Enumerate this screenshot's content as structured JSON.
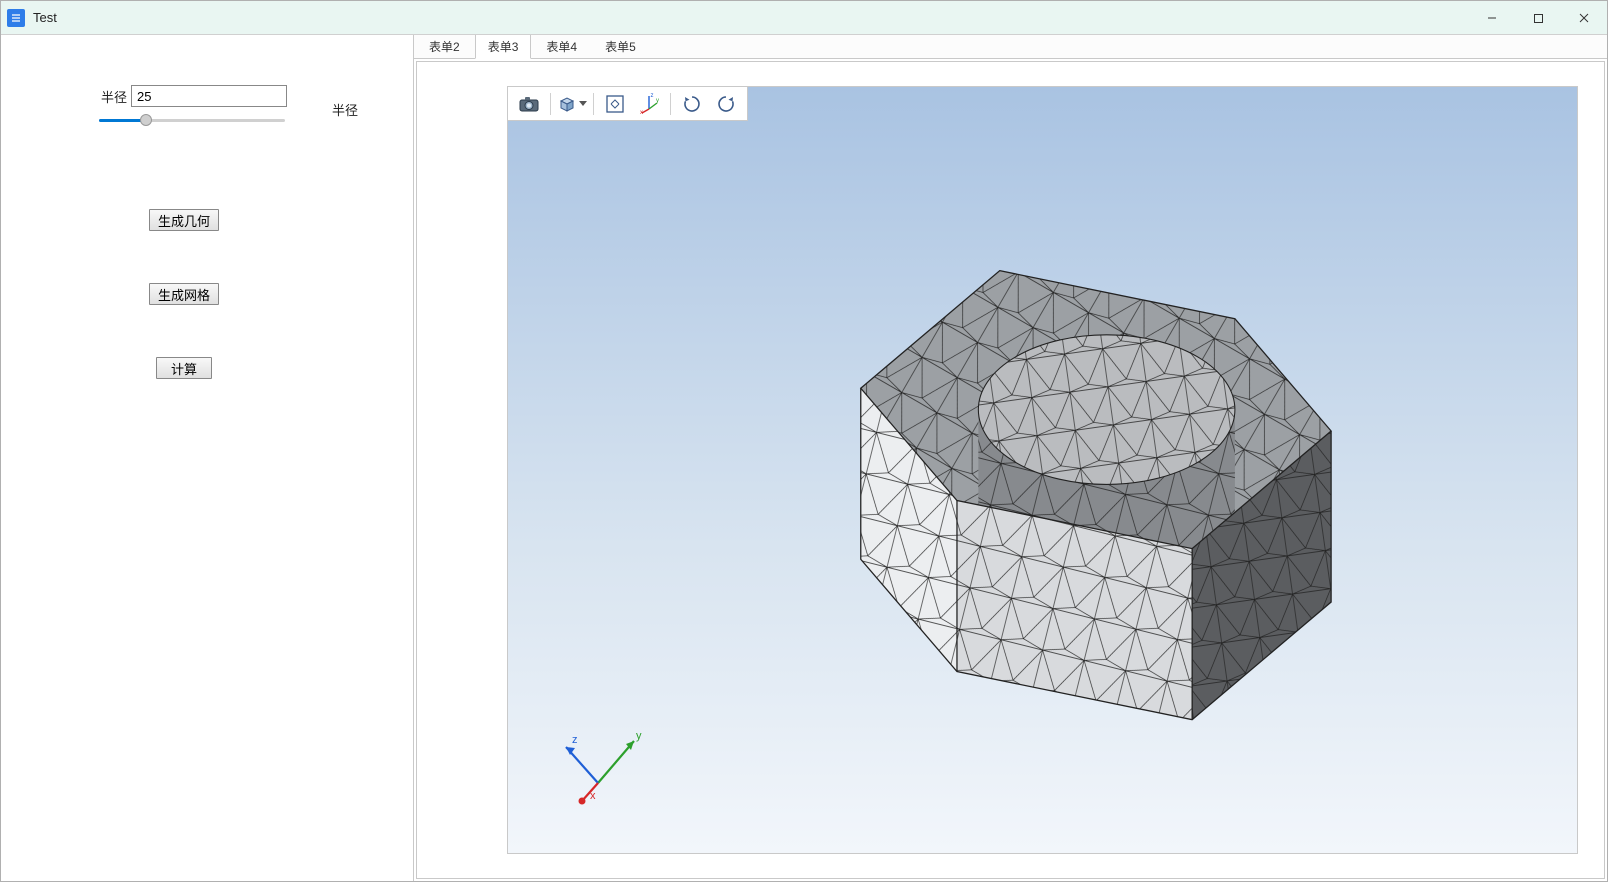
{
  "window": {
    "title": "Test",
    "controls": {
      "minimize": "−",
      "maximize": "□",
      "close": "×"
    },
    "titlebar_bg": "#e9f6f2",
    "app_icon_color": "#2e7de9"
  },
  "sidebar": {
    "param_label": "半径",
    "param_value": "25",
    "extra_label": "半径",
    "slider": {
      "percent": 25
    },
    "buttons": {
      "generate_geometry": "生成几何",
      "generate_mesh": "生成网格",
      "compute": "计算"
    }
  },
  "tabs": {
    "items": [
      {
        "label": "表单2",
        "active": false
      },
      {
        "label": "表单3",
        "active": true
      },
      {
        "label": "表单4",
        "active": false
      },
      {
        "label": "表单5",
        "active": false
      }
    ]
  },
  "viewport": {
    "bg_gradient_top": "#a9c3e2",
    "bg_gradient_mid": "#d8e4f0",
    "bg_gradient_bottom": "#f2f6fb",
    "toolbar_icons": [
      {
        "name": "camera-icon"
      },
      {
        "name": "view-cube-icon",
        "dropdown": true
      },
      {
        "name": "fit-window-icon"
      },
      {
        "name": "axis-triad-icon"
      },
      {
        "name": "rotate-cw-icon"
      },
      {
        "name": "rotate-ccw-icon"
      }
    ],
    "triad": {
      "x_color": "#d62728",
      "y_color": "#2ca02c",
      "z_color": "#1f5fd6",
      "labels": {
        "x": "x",
        "y": "y",
        "z": "z"
      }
    },
    "mesh": {
      "type": "3d-mesh",
      "description": "hexagonal nut with cylindrical hole, triangular surface mesh",
      "hex_face_colors": {
        "top": "#9ca0a4",
        "front_light": "#eceef0",
        "front_mid": "#d8dadd",
        "side_dark": "#5b5d60",
        "side_mid": "#878a8e",
        "hole_inner": "#babcbf"
      },
      "wire_color": "#222222",
      "wire_width": 0.5
    }
  }
}
